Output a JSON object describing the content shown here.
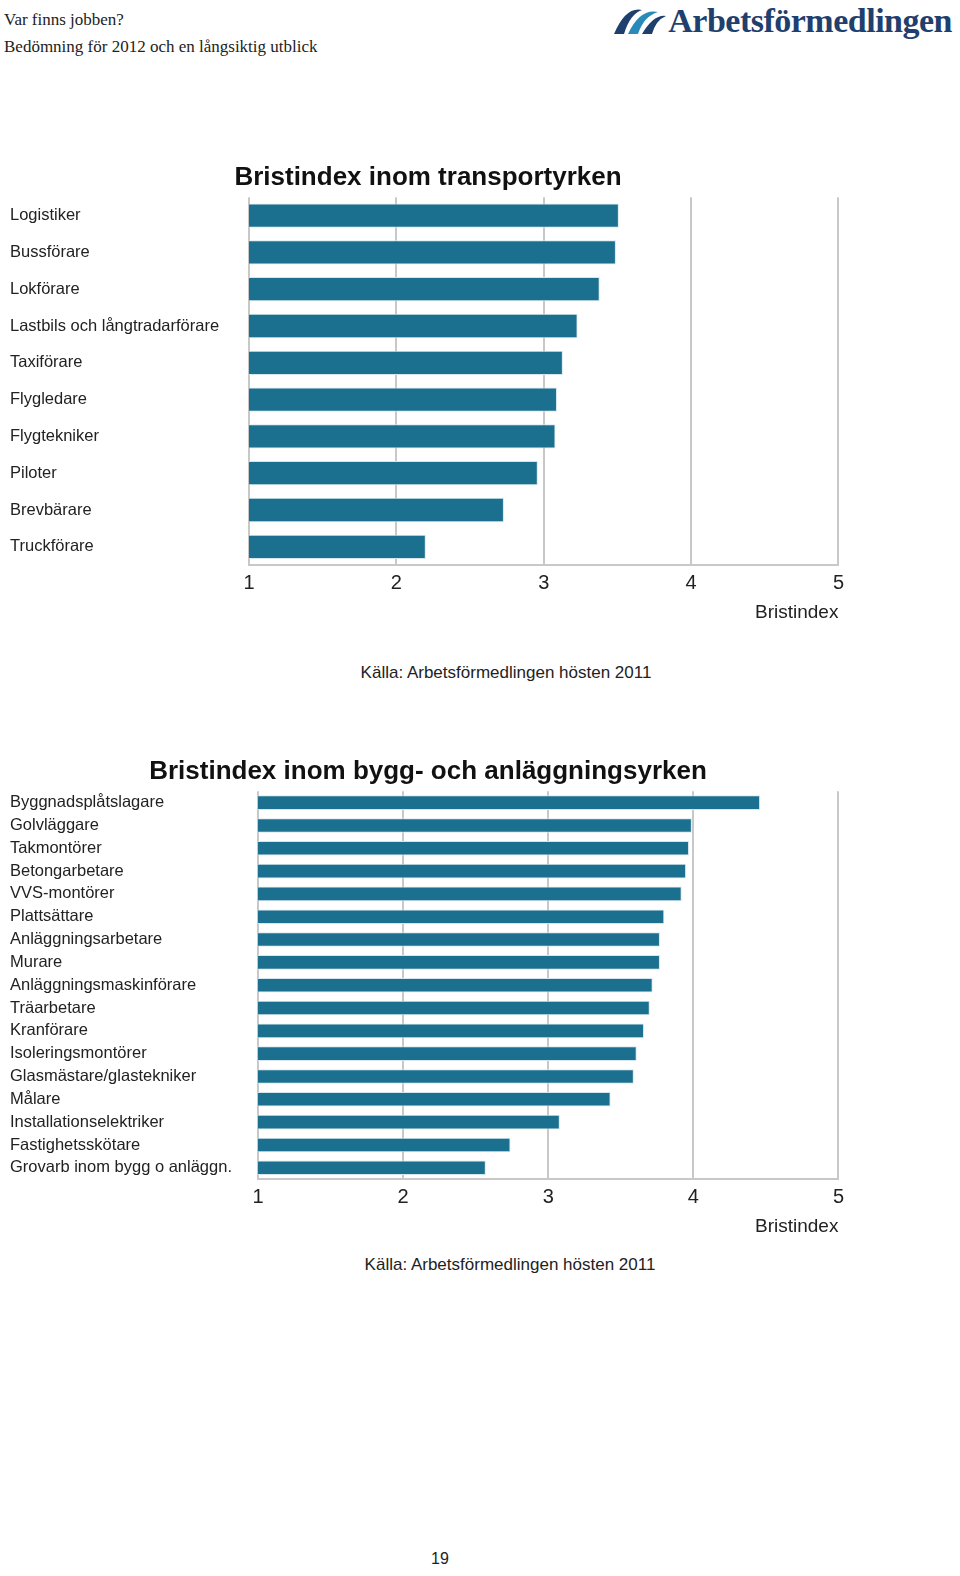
{
  "header": {
    "title": "Var finns jobben?",
    "subtitle": "Bedömning för 2012 och en långsiktig utblick",
    "logo": "Arbetsförmedlingen"
  },
  "chart_data": [
    {
      "type": "bar",
      "orientation": "horizontal",
      "title": "Bristindex inom transportyrken",
      "categories": [
        "Logistiker",
        "Bussförare",
        "Lokförare",
        "Lastbils och långtradarförare",
        "Taxiförare",
        "Flygledare",
        "Flygtekniker",
        "Piloter",
        "Brevbärare",
        "Truckförare"
      ],
      "values": [
        3.51,
        3.49,
        3.38,
        3.23,
        3.13,
        3.09,
        3.08,
        2.96,
        2.73,
        2.2
      ],
      "color": "#1b6f8f",
      "x_label": "Bristindex",
      "xlim": [
        1,
        5
      ],
      "xticks": [
        1,
        2,
        3,
        4,
        5
      ],
      "grid": true,
      "source": "Källa: Arbetsförmedlingen hösten 2011"
    },
    {
      "type": "bar",
      "orientation": "horizontal",
      "title": "Bristindex inom bygg- och anläggningsyrken",
      "categories": [
        "Byggnadsplåtslagare",
        "Golvläggare",
        "Takmontörer",
        "Betongarbetare",
        "VVS-montörer",
        "Plattsättare",
        "Anläggningsarbetare",
        "Murare",
        "Anläggningsmaskinförare",
        "Träarbetare",
        "Kranförare",
        "Isoleringsmontörer",
        "Glasmästare/glastekniker",
        "Målare",
        "Installationselektriker",
        "Fastighetsskötare",
        "Grovarb inom bygg o anläggn."
      ],
      "values": [
        4.46,
        3.99,
        3.97,
        3.95,
        3.92,
        3.8,
        3.77,
        3.77,
        3.72,
        3.7,
        3.66,
        3.61,
        3.59,
        3.43,
        3.08,
        2.74,
        2.57
      ],
      "color": "#1b6f8f",
      "x_label": "Bristindex",
      "xlim": [
        1,
        5
      ],
      "xticks": [
        1,
        2,
        3,
        4,
        5
      ],
      "grid": true,
      "source": "Källa: Arbetsförmedlingen hösten 2011"
    }
  ],
  "page_number": 19
}
